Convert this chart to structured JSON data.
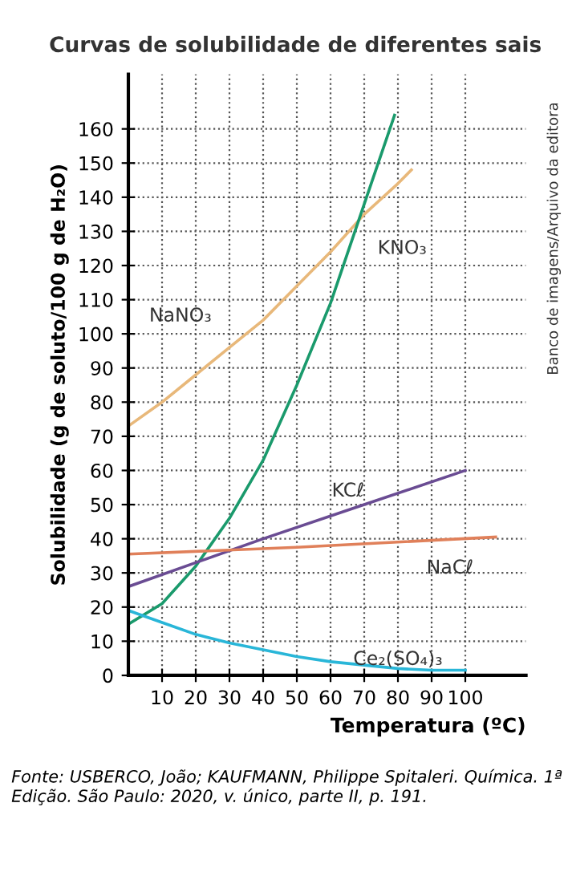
{
  "chart_data": {
    "type": "line",
    "title": "Curvas de solubilidade de diferentes sais",
    "xlabel": "Temperatura (ºC)",
    "ylabel": "Solubilidade (g de soluto/100 g de H₂O)",
    "xlim": [
      0,
      118
    ],
    "ylim": [
      0,
      176
    ],
    "xticks": [
      10,
      20,
      30,
      40,
      50,
      60,
      70,
      80,
      90,
      100
    ],
    "yticks": [
      0,
      10,
      20,
      30,
      40,
      50,
      60,
      70,
      80,
      90,
      100,
      110,
      120,
      130,
      140,
      150,
      160
    ],
    "grid": true,
    "legend": false,
    "marker": "none",
    "line_style": "solid",
    "series": [
      {
        "name": "NaNO₃",
        "color": "#e8b87a",
        "x": [
          0,
          10,
          20,
          30,
          40,
          50,
          60,
          70,
          80,
          84
        ],
        "values": [
          73,
          80,
          88,
          96,
          104,
          114,
          124,
          135,
          144,
          148
        ]
      },
      {
        "name": "KNO₃",
        "color": "#1a9a6c",
        "x": [
          0,
          10,
          20,
          30,
          40,
          50,
          60,
          70,
          79
        ],
        "values": [
          15,
          21,
          32,
          46,
          63,
          85,
          109,
          138,
          164
        ]
      },
      {
        "name": "KCℓ",
        "color": "#6a4c93",
        "x": [
          0,
          20,
          40,
          70,
          100
        ],
        "values": [
          26,
          33,
          40,
          50,
          60
        ]
      },
      {
        "name": "NaCℓ",
        "color": "#e0805a",
        "x": [
          0,
          50,
          109
        ],
        "values": [
          35.5,
          37.5,
          40.5
        ]
      },
      {
        "name": "Ce₂(SO₄)₃",
        "color": "#29b6d8",
        "x": [
          0,
          10,
          20,
          30,
          40,
          50,
          60,
          70,
          80,
          90,
          100
        ],
        "values": [
          19,
          15.5,
          12,
          9.5,
          7.5,
          5.5,
          4,
          3,
          2,
          1.5,
          1.5
        ]
      }
    ],
    "annotations": [
      "Banco de imagens/Arquivo da editora",
      "Fonte: USBERCO, João; KAUFMANN, Philippe Spitaleri. Química. 1ª Edição. São Paulo: 2020, v. único, parte II, p. 191."
    ]
  }
}
